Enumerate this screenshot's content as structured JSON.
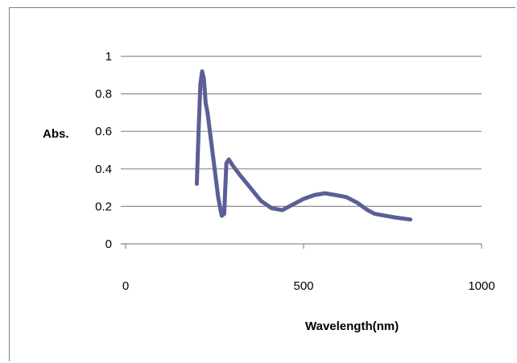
{
  "chart_data": {
    "type": "line",
    "title": "",
    "xlabel": "Wavelength(nm)",
    "ylabel": "Abs.",
    "xlim": [
      0,
      1000
    ],
    "ylim": [
      0,
      1
    ],
    "x_ticks": [
      0,
      500,
      1000
    ],
    "x_tick_labels": [
      "0",
      "500",
      "1000"
    ],
    "y_ticks": [
      0,
      0.2,
      0.4,
      0.6,
      0.8,
      1
    ],
    "y_tick_labels": [
      "0",
      "0.2",
      "0.4",
      "0.6",
      "0.8",
      "1"
    ],
    "grid": "horizontal",
    "legend": "none",
    "series": [
      {
        "color": "#5b5f97",
        "x": [
          200,
          205,
          210,
          215,
          220,
          225,
          230,
          240,
          250,
          260,
          270,
          277,
          283,
          290,
          300,
          320,
          350,
          380,
          410,
          440,
          470,
          500,
          530,
          560,
          590,
          620,
          650,
          680,
          700,
          730,
          760,
          800
        ],
        "y": [
          0.32,
          0.6,
          0.85,
          0.92,
          0.88,
          0.75,
          0.7,
          0.55,
          0.4,
          0.25,
          0.15,
          0.16,
          0.43,
          0.45,
          0.42,
          0.37,
          0.3,
          0.23,
          0.19,
          0.18,
          0.21,
          0.24,
          0.26,
          0.27,
          0.26,
          0.25,
          0.22,
          0.18,
          0.16,
          0.15,
          0.14,
          0.13
        ]
      }
    ]
  }
}
